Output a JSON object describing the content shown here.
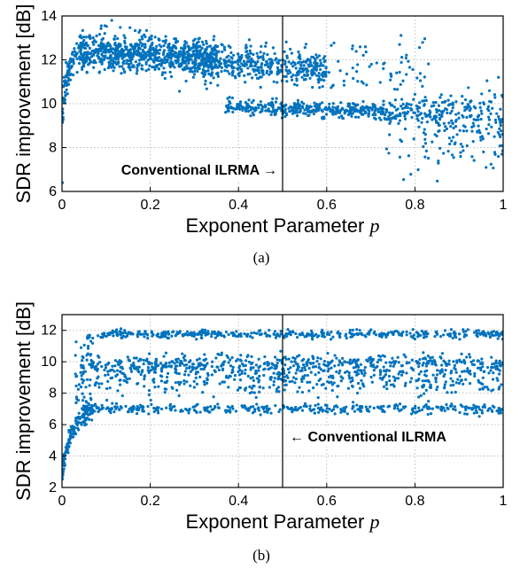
{
  "chart_data": [
    {
      "type": "scatter",
      "panel_label": "(a)",
      "xlabel": "Exponent Parameter",
      "xlabel_symbol": "p",
      "ylabel": "SDR improvement [dB]",
      "xlim": [
        0,
        1
      ],
      "ylim": [
        6,
        14
      ],
      "xticks": [
        0,
        0.2,
        0.4,
        0.6,
        0.8,
        1
      ],
      "xtick_labels": [
        "0",
        "0.2",
        "0.4",
        "0.6",
        "0.8",
        "1"
      ],
      "yticks": [
        6,
        8,
        10,
        12,
        14
      ],
      "ytick_labels": [
        "6",
        "8",
        "10",
        "12",
        "14"
      ],
      "grid": true,
      "marker_color": "#0072BD",
      "reference_line": {
        "x": 0.5,
        "label": "Conventional ILRMA →"
      },
      "trend": [
        {
          "x": 0.0,
          "y": 9.6
        },
        {
          "x": 0.01,
          "y": 10.8
        },
        {
          "x": 0.02,
          "y": 11.3
        },
        {
          "x": 0.03,
          "y": 11.8
        },
        {
          "x": 0.05,
          "y": 12.2
        },
        {
          "x": 0.08,
          "y": 12.4
        },
        {
          "x": 0.1,
          "y": 12.5
        },
        {
          "x": 0.2,
          "y": 12.2
        },
        {
          "x": 0.3,
          "y": 12.0
        },
        {
          "x": 0.4,
          "y": 11.8
        },
        {
          "x": 0.5,
          "y": 11.6
        },
        {
          "x": 0.6,
          "y": 11.3
        },
        {
          "x": 0.7,
          "y": 11.0
        },
        {
          "x": 0.8,
          "y": 10.8
        },
        {
          "x": 1.0,
          "y": 10.5
        }
      ],
      "clusters": [
        {
          "x_range": [
            0.0,
            0.06
          ],
          "y_center": 11.0,
          "spread": 0.8
        },
        {
          "x_range": [
            0.06,
            0.35
          ],
          "y_center": 12.3,
          "spread": 0.45
        },
        {
          "x_range": [
            0.35,
            0.6
          ],
          "y_center": 11.75,
          "spread": 0.45
        },
        {
          "x_range": [
            0.33,
            0.75
          ],
          "y_center": 9.8,
          "spread": 0.2
        },
        {
          "x_range": [
            0.75,
            1.0
          ],
          "y_center": 9.4,
          "spread": 0.8
        }
      ],
      "point_count": 2000
    },
    {
      "type": "scatter",
      "panel_label": "(b)",
      "xlabel": "Exponent Parameter",
      "xlabel_symbol": "p",
      "ylabel": "SDR improvement [dB]",
      "xlim": [
        0,
        1
      ],
      "ylim": [
        2,
        13
      ],
      "xticks": [
        0,
        0.2,
        0.4,
        0.6,
        0.8,
        1
      ],
      "xtick_labels": [
        "0",
        "0.2",
        "0.4",
        "0.6",
        "0.8",
        "1"
      ],
      "yticks": [
        2,
        4,
        6,
        8,
        10,
        12
      ],
      "ytick_labels": [
        "2",
        "4",
        "6",
        "8",
        "10",
        "12"
      ],
      "grid": true,
      "marker_color": "#0072BD",
      "reference_line": {
        "x": 0.5,
        "label": "← Conventional ILRMA"
      },
      "trend": [
        {
          "x": 0.0,
          "y": 3.0
        },
        {
          "x": 0.01,
          "y": 4.2
        },
        {
          "x": 0.02,
          "y": 5.0
        },
        {
          "x": 0.04,
          "y": 6.3
        },
        {
          "x": 0.06,
          "y": 7.0
        }
      ],
      "bands": [
        {
          "x_range": [
            0.05,
            1.0
          ],
          "y": 11.7,
          "spread": 0.15
        },
        {
          "x_range": [
            0.06,
            1.0
          ],
          "y": 9.8,
          "spread": 0.35
        },
        {
          "x_range": [
            0.05,
            1.0
          ],
          "y": 8.7,
          "spread": 0.6
        },
        {
          "x_range": [
            0.05,
            1.0
          ],
          "y": 7.0,
          "spread": 0.2
        }
      ],
      "point_count": 1800
    }
  ]
}
